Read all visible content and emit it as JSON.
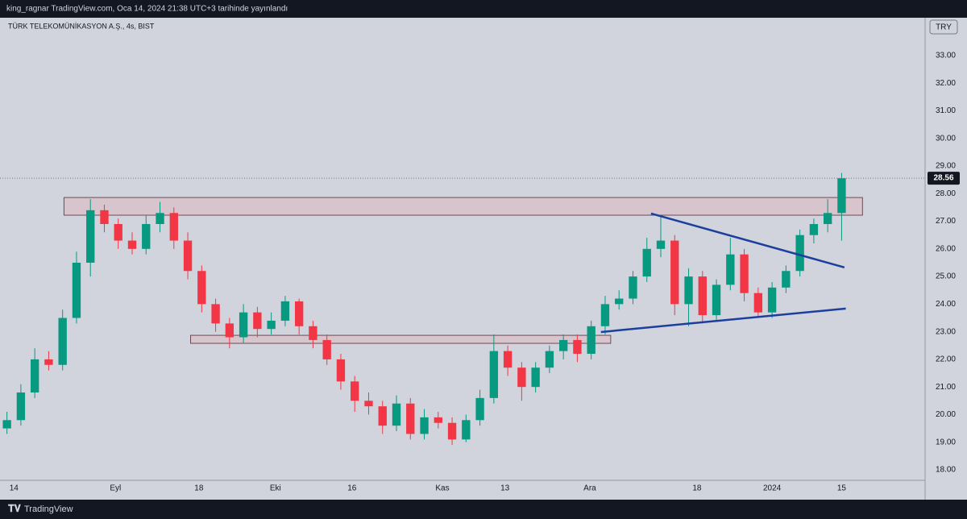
{
  "header": "king_ragnar TradingView.com, Oca 14, 2024 21:38 UTC+3 tarihinde yayınlandı",
  "footer": "TradingView",
  "chart_data": {
    "type": "candlestick",
    "title": "TÜRK TELEKOMÜNİKASYON A.Ş., 4s, BIST",
    "currency": "TRY",
    "up_color": "#089981",
    "down_color": "#f23645",
    "grid": false,
    "xlim": [
      -0.5,
      66
    ],
    "ylim": [
      17.62,
      34.37
    ],
    "yticks": [
      {
        "value": 18,
        "label": "18.00"
      },
      {
        "value": 19,
        "label": "19.00"
      },
      {
        "value": 20,
        "label": "20.00"
      },
      {
        "value": 21,
        "label": "21.00"
      },
      {
        "value": 22,
        "label": "22.00"
      },
      {
        "value": 23,
        "label": "23.00"
      },
      {
        "value": 24,
        "label": "24.00"
      },
      {
        "value": 25,
        "label": "25.00"
      },
      {
        "value": 26,
        "label": "26.00"
      },
      {
        "value": 27,
        "label": "27.00"
      },
      {
        "value": 28,
        "label": "28.00"
      },
      {
        "value": 29,
        "label": "29.00"
      },
      {
        "value": 30,
        "label": "30.00"
      },
      {
        "value": 31,
        "label": "31.00"
      },
      {
        "value": 32,
        "label": "32.00"
      },
      {
        "value": 33,
        "label": "33.00"
      }
    ],
    "xticks": [
      {
        "value": 0.5,
        "label": "14"
      },
      {
        "value": 7.8,
        "label": "Eyl"
      },
      {
        "value": 13.8,
        "label": "18"
      },
      {
        "value": 19.3,
        "label": "Eki"
      },
      {
        "value": 24.8,
        "label": "16"
      },
      {
        "value": 31.3,
        "label": "Kas"
      },
      {
        "value": 35.8,
        "label": "13"
      },
      {
        "value": 41.9,
        "label": "Ara"
      },
      {
        "value": 49.6,
        "label": "18"
      },
      {
        "value": 55,
        "label": "2024"
      },
      {
        "value": 60,
        "label": "15"
      }
    ],
    "last_price": 28.56,
    "open": [
      19.5,
      19.8,
      20.8,
      22.0,
      21.8,
      23.5,
      25.5,
      27.4,
      26.9,
      26.3,
      26.0,
      26.9,
      27.3,
      26.3,
      25.2,
      24.0,
      23.3,
      22.8,
      23.7,
      23.1,
      23.4,
      24.1,
      23.2,
      22.7,
      22.0,
      21.2,
      20.5,
      20.3,
      19.6,
      20.4,
      19.3,
      19.9,
      19.7,
      19.1,
      19.8,
      20.6,
      22.3,
      21.7,
      21.0,
      21.7,
      22.3,
      22.7,
      22.2,
      23.2,
      24.0,
      24.2,
      25.0,
      26.0,
      26.3,
      24.0,
      25.0,
      23.6,
      24.7,
      25.8,
      24.4,
      23.7,
      24.6,
      25.2,
      26.5,
      26.9,
      27.3
    ],
    "high": [
      20.1,
      21.1,
      22.4,
      22.3,
      23.8,
      25.9,
      27.8,
      27.6,
      27.1,
      26.6,
      27.2,
      27.7,
      27.5,
      26.6,
      25.4,
      24.2,
      23.5,
      24.0,
      23.9,
      23.7,
      24.3,
      24.2,
      23.4,
      22.9,
      22.2,
      21.4,
      20.8,
      20.5,
      20.7,
      20.6,
      20.2,
      20.1,
      19.9,
      20.0,
      20.9,
      22.9,
      22.5,
      21.9,
      21.9,
      22.5,
      22.9,
      22.9,
      23.4,
      24.3,
      24.5,
      25.2,
      26.4,
      27.2,
      26.5,
      25.3,
      25.2,
      24.9,
      26.4,
      26.0,
      24.6,
      24.8,
      25.4,
      26.7,
      27.1,
      27.8,
      28.75
    ],
    "low": [
      19.3,
      19.6,
      20.6,
      21.6,
      21.6,
      23.3,
      25.0,
      26.6,
      26.0,
      25.8,
      25.8,
      26.6,
      26.0,
      24.9,
      23.7,
      23.0,
      22.4,
      22.6,
      22.8,
      22.9,
      23.2,
      22.9,
      22.4,
      21.8,
      20.9,
      20.1,
      20.0,
      19.3,
      19.4,
      19.1,
      19.1,
      19.5,
      18.9,
      19.0,
      19.6,
      20.4,
      21.4,
      20.5,
      20.8,
      21.5,
      22.0,
      21.9,
      22.0,
      22.9,
      23.8,
      24.0,
      24.8,
      25.7,
      23.6,
      23.2,
      23.3,
      23.4,
      24.5,
      24.1,
      23.5,
      23.5,
      24.4,
      25.0,
      26.2,
      26.6,
      26.3
    ],
    "close": [
      19.8,
      20.8,
      22.0,
      21.8,
      23.5,
      25.5,
      27.4,
      26.9,
      26.3,
      26.0,
      26.9,
      27.3,
      26.3,
      25.2,
      24.0,
      23.3,
      22.8,
      23.7,
      23.1,
      23.4,
      24.1,
      23.2,
      22.7,
      22.0,
      21.2,
      20.5,
      20.3,
      19.6,
      20.4,
      19.3,
      19.9,
      19.7,
      19.1,
      19.8,
      20.6,
      22.3,
      21.7,
      21.0,
      21.7,
      22.3,
      22.7,
      22.2,
      23.2,
      24.0,
      24.2,
      25.0,
      26.0,
      26.3,
      24.0,
      25.0,
      23.6,
      24.7,
      25.8,
      24.4,
      23.7,
      24.6,
      25.2,
      26.5,
      26.9,
      27.3,
      28.56
    ],
    "zones": [
      {
        "x": [
          4.1,
          61.5
        ],
        "y": [
          27.22,
          27.86
        ],
        "color": "#d8c4cc"
      },
      {
        "x": [
          13.2,
          43.4
        ],
        "y": [
          22.58,
          22.87
        ],
        "color": "#d8c4cc"
      }
    ],
    "trendlines": [
      {
        "x": [
          46.3,
          60.2
        ],
        "y": [
          27.28,
          25.33
        ],
        "color": "#1c3f9e"
      },
      {
        "x": [
          42.7,
          60.3
        ],
        "y": [
          22.99,
          23.84
        ],
        "color": "#1c3f9e"
      }
    ]
  }
}
